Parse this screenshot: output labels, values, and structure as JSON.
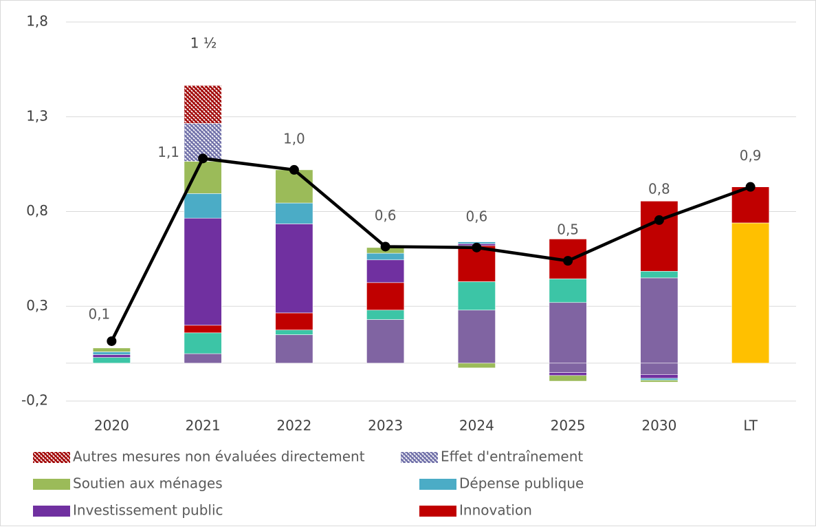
{
  "chart_data": {
    "type": "bar",
    "stacked": true,
    "annotation": "1 ½",
    "categories": [
      "2020",
      "2021",
      "2022",
      "2023",
      "2024",
      "2025",
      "2030",
      "LT"
    ],
    "ylim": [
      -0.2,
      1.8
    ],
    "yticks": [
      {
        "value": -0.2,
        "label": "-0,2"
      },
      {
        "value": 0.3,
        "label": "0,3"
      },
      {
        "value": 0.8,
        "label": "0,8"
      },
      {
        "value": 1.3,
        "label": "1,3"
      },
      {
        "value": 1.8,
        "label": "1,8"
      }
    ],
    "grid": true,
    "series": [
      {
        "color": "#8064a2",
        "values": [
          0,
          0.05,
          0.15,
          0.23,
          0.28,
          [
            0.32,
            -0.05
          ],
          [
            0.45,
            -0.06
          ],
          0
        ]
      },
      {
        "color": "#3cc5a6",
        "values": [
          0.03,
          0.11,
          0.025,
          0.05,
          0.15,
          0.125,
          0.035,
          0
        ]
      },
      {
        "color": "#ffc000",
        "values": [
          0,
          0,
          0,
          0,
          0,
          0,
          0,
          0.74
        ]
      },
      {
        "name": "Innovation",
        "color": "#c00000",
        "values": [
          0,
          0.04,
          0.09,
          0.145,
          0.19,
          0.21,
          0.37,
          0.19
        ]
      },
      {
        "name": "Investissement public",
        "color": "#7030a0",
        "values": [
          0.015,
          0.565,
          0.47,
          0.12,
          0.01,
          -0.015,
          -0.02,
          0
        ]
      },
      {
        "name": "Dépense publique",
        "color": "#4bacc6",
        "values": [
          0.015,
          0.13,
          0.11,
          0.035,
          0.01,
          0,
          -0.01,
          0
        ]
      },
      {
        "name": "Soutien aux ménages",
        "color": "#9bbb59",
        "values": [
          0.02,
          0.17,
          0.175,
          0.03,
          -0.025,
          -0.03,
          -0.01,
          0
        ]
      },
      {
        "name": "Effet d'entraînement",
        "color": "#6f6fa8",
        "hatch": true,
        "values": [
          0,
          0.2,
          0,
          0,
          0,
          0,
          0,
          0
        ]
      },
      {
        "name": "Autres mesures non évaluées directement",
        "color": "#a00000",
        "hatch": true,
        "values": [
          0,
          0.2,
          0,
          0,
          0,
          0,
          0,
          0
        ]
      }
    ],
    "line": {
      "color": "#000000",
      "values": [
        0.116,
        1.08,
        1.02,
        0.615,
        0.61,
        0.54,
        0.755,
        0.93
      ],
      "value_labels": [
        "0,1",
        "1,1",
        "1,0",
        "0,6",
        "0,6",
        "0,5",
        "0,8",
        "0,9"
      ]
    }
  }
}
